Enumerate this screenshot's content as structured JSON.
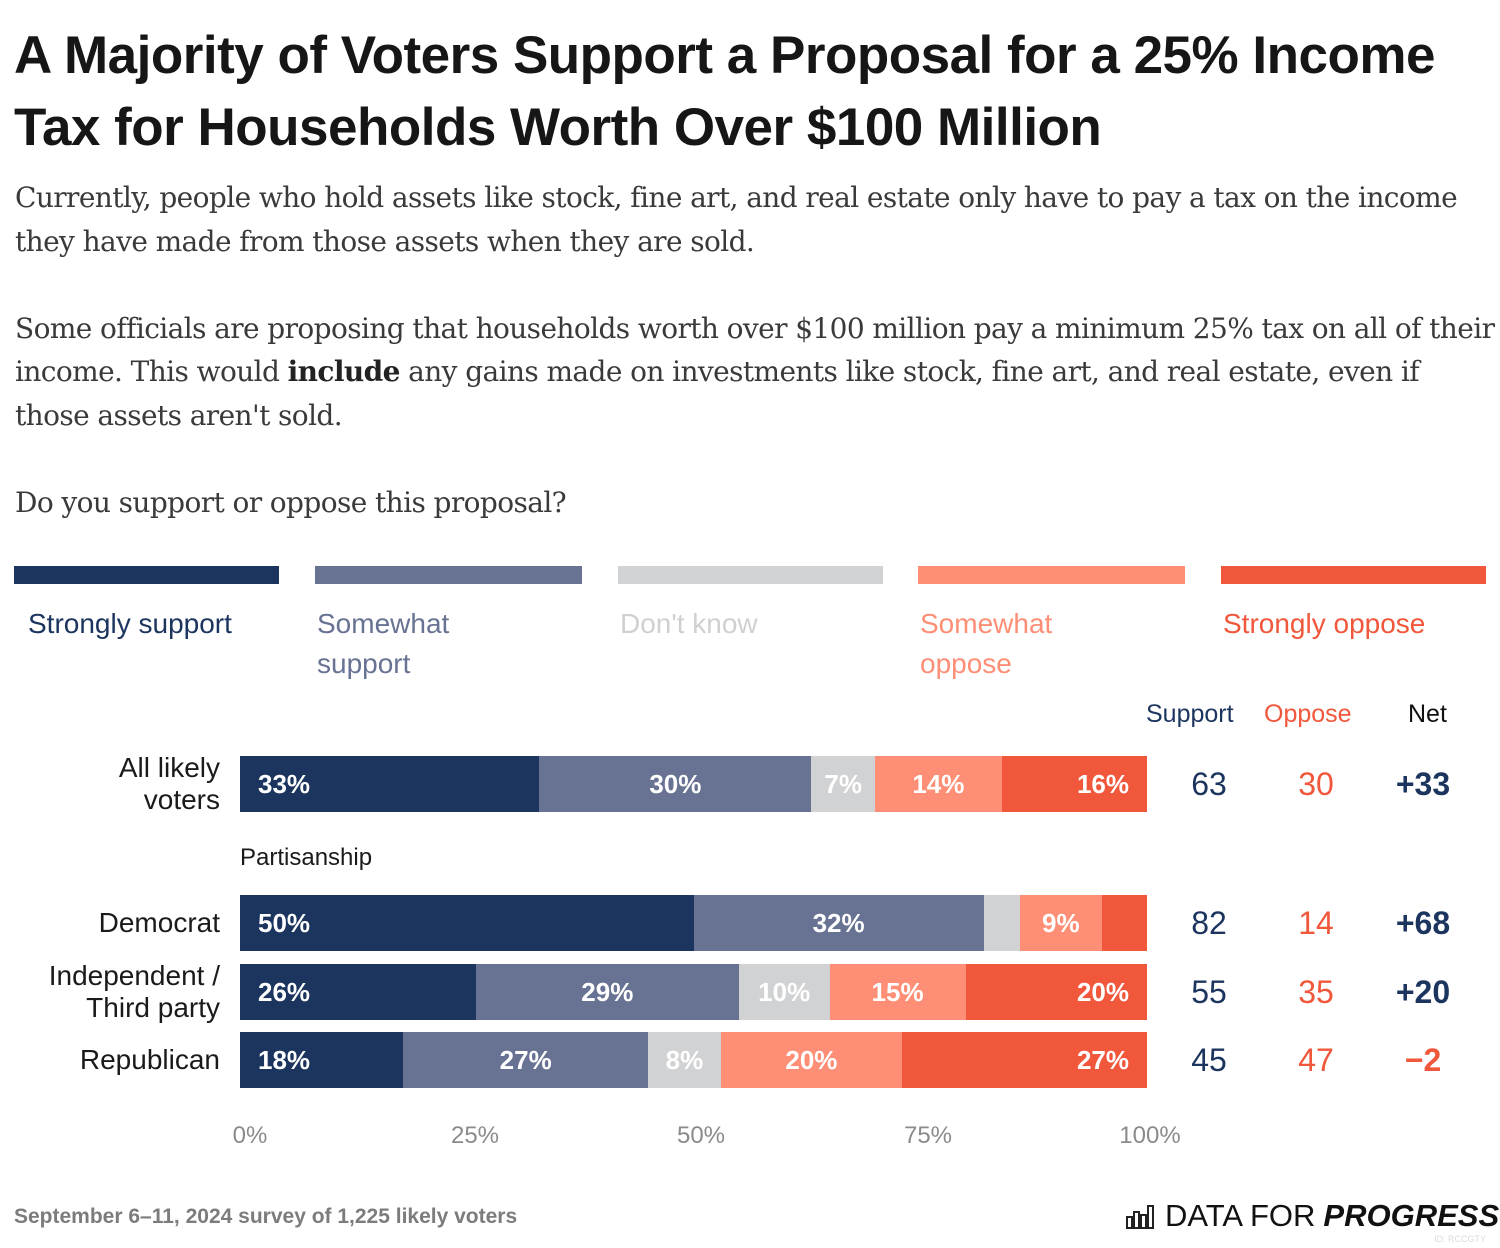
{
  "title": "A Majority of Voters Support a Proposal for a 25% Income Tax for Households Worth Over $100 Million",
  "intro": {
    "p1": "Currently, people who hold assets like stock, fine art, and real estate only have to pay a tax on the income they have made from those assets when they are sold.",
    "p2_before": "Some officials are proposing that households worth over $100 million pay a minimum 25% tax on all of their income. This would ",
    "p2_bold": "include",
    "p2_after": " any gains made on investments like stock, fine art, and real estate, even if those assets aren't sold.",
    "question": "Do you support or oppose this proposal?"
  },
  "colors": {
    "strongly_support": "#1c355e",
    "somewhat_support": "#687293",
    "dont_know": "#d1d2d4",
    "somewhat_oppose": "#fe8f76",
    "strongly_oppose": "#f0573b"
  },
  "summary_headers": {
    "support": "Support",
    "oppose": "Oppose",
    "net": "Net"
  },
  "section_label": "Partisanship",
  "footer": "September 6–11, 2024 survey of 1,225 likely voters",
  "logo": {
    "light": "DATA FOR",
    "bold": "PROGRESS",
    "id": "ID: RCCGTY"
  },
  "chart_data": {
    "type": "bar",
    "orientation": "horizontal-stacked",
    "title": "A Majority of Voters Support a Proposal for a 25% Income Tax for Households Worth Over $100 Million",
    "xlabel": "",
    "ylabel": "",
    "xlim": [
      0,
      100
    ],
    "x_ticks": [
      "0%",
      "25%",
      "50%",
      "75%",
      "100%"
    ],
    "legend_position": "top",
    "legend": [
      "Strongly support",
      "Somewhat support",
      "Don't know",
      "Somewhat oppose",
      "Strongly oppose"
    ],
    "series_keys": [
      "strongly_support",
      "somewhat_support",
      "dont_know",
      "somewhat_oppose",
      "strongly_oppose"
    ],
    "categories": [
      "All likely voters",
      "Democrat",
      "Independent / Third party",
      "Republican"
    ],
    "rows": [
      {
        "label": "All likely voters",
        "values": [
          33,
          30,
          7,
          14,
          16
        ],
        "labels": [
          "33%",
          "30%",
          "7%",
          "14%",
          "16%"
        ],
        "support": "63",
        "oppose": "30",
        "net": "+33",
        "net_sign": "pos"
      },
      {
        "label": "Democrat",
        "values": [
          50,
          32,
          4,
          9,
          5
        ],
        "labels": [
          "50%",
          "32%",
          "",
          "9%",
          ""
        ],
        "support": "82",
        "oppose": "14",
        "net": "+68",
        "net_sign": "pos"
      },
      {
        "label": "Independent / Third party",
        "values": [
          26,
          29,
          10,
          15,
          20
        ],
        "labels": [
          "26%",
          "29%",
          "10%",
          "15%",
          "20%"
        ],
        "support": "55",
        "oppose": "35",
        "net": "+20",
        "net_sign": "pos"
      },
      {
        "label": "Republican",
        "values": [
          18,
          27,
          8,
          20,
          27
        ],
        "labels": [
          "18%",
          "27%",
          "8%",
          "20%",
          "27%"
        ],
        "support": "45",
        "oppose": "47",
        "net": "−2",
        "net_sign": "neg"
      }
    ]
  }
}
